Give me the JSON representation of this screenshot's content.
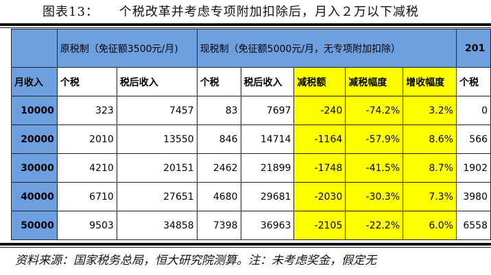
{
  "caption": {
    "label": "图表13：",
    "text": "个税改革并考虑专项附加扣除后，月入２万以下减税"
  },
  "header": {
    "group_old": "原税制（免征额3500元/月)",
    "group_new": "现税制（免征额5000元/月，无专项附加扣除）",
    "group_cut": "201",
    "col_income": "月收入",
    "col_tax": "个税",
    "col_after": "税后收入",
    "col_tax2": "个税",
    "col_after2": "税后收入",
    "col_cut": "减税额",
    "col_cut_pct": "减税幅度",
    "col_inc_pct": "增收幅度",
    "col_tax3": "个税"
  },
  "rows": [
    {
      "income": "10000",
      "old_tax": "323",
      "old_after": "7457",
      "new_tax": "83",
      "new_after": "7697",
      "cut": "-240",
      "cut_pct": "-74.2%",
      "inc_pct": "3.2%",
      "extra": "0"
    },
    {
      "income": "20000",
      "old_tax": "2010",
      "old_after": "13550",
      "new_tax": "846",
      "new_after": "14714",
      "cut": "-1164",
      "cut_pct": "-57.9%",
      "inc_pct": "8.6%",
      "extra": "566"
    },
    {
      "income": "30000",
      "old_tax": "4210",
      "old_after": "20151",
      "new_tax": "2462",
      "new_after": "21899",
      "cut": "-1748",
      "cut_pct": "-41.5%",
      "inc_pct": "8.7%",
      "extra": "1902"
    },
    {
      "income": "40000",
      "old_tax": "6710",
      "old_after": "27651",
      "new_tax": "4680",
      "new_after": "29681",
      "cut": "-2030",
      "cut_pct": "-30.3%",
      "inc_pct": "7.3%",
      "extra": "3980"
    },
    {
      "income": "50000",
      "old_tax": "9503",
      "old_after": "34858",
      "new_tax": "7398",
      "new_after": "36963",
      "cut": "-2105",
      "cut_pct": "-22.2%",
      "inc_pct": "6.0%",
      "extra": "6558"
    }
  ],
  "source": "资料来源：国家税务总局，恒大研究院测算。注：未考虑奖金，假定无"
}
